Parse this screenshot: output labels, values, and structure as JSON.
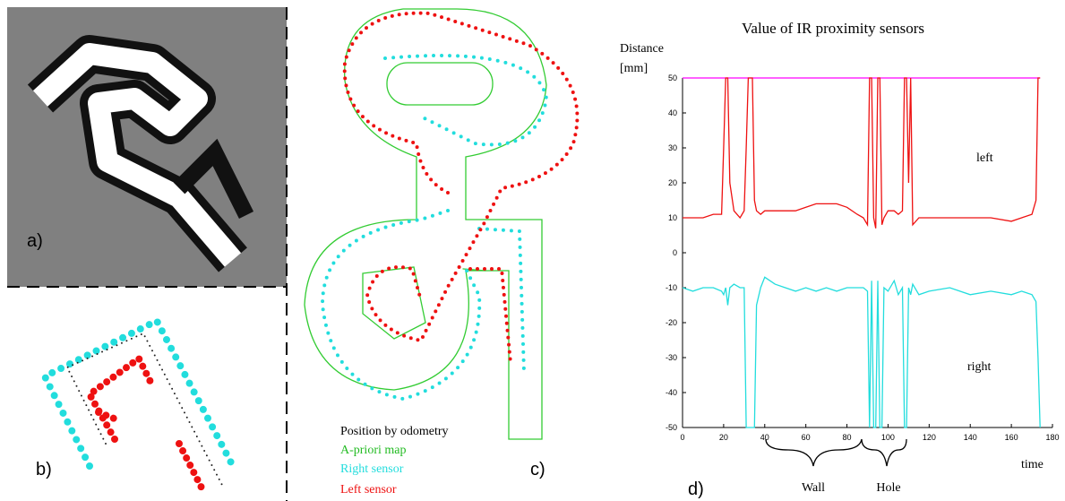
{
  "panels": {
    "a": {
      "label": "a)"
    },
    "b": {
      "label": "b)"
    },
    "c": {
      "label": "c)",
      "legend": [
        "Position by odometry",
        "A-priori map",
        "Right sensor",
        "Left sensor"
      ]
    }
  },
  "chart_data": {
    "type": "line",
    "panel_label": "d)",
    "title": "Value of IR proximity sensors",
    "ylabel": [
      "Distance",
      "[mm]"
    ],
    "xlabel": "time",
    "annotations": [
      "Wall",
      "Hole"
    ],
    "x": [
      0,
      5,
      10,
      15,
      19,
      20,
      21,
      22,
      23,
      25,
      28,
      30,
      31,
      32,
      33,
      34,
      35,
      36,
      38,
      40,
      45,
      50,
      55,
      60,
      65,
      70,
      75,
      80,
      85,
      88,
      90,
      91,
      92,
      93,
      94,
      95,
      96,
      97,
      98,
      100,
      103,
      105,
      107,
      108,
      109,
      110,
      111,
      112,
      115,
      120,
      130,
      140,
      150,
      160,
      165,
      170,
      172,
      173,
      174
    ],
    "series": [
      {
        "color": "#ff00ff",
        "values": [
          50,
          50,
          50,
          50,
          50,
          50,
          50,
          50,
          50,
          50,
          50,
          50,
          50,
          50,
          50,
          50,
          50,
          50,
          50,
          50,
          50,
          50,
          50,
          50,
          50,
          50,
          50,
          50,
          50,
          50,
          50,
          50,
          50,
          50,
          50,
          50,
          50,
          50,
          50,
          50,
          50,
          50,
          50,
          50,
          50,
          50,
          50,
          50,
          50,
          50,
          50,
          50,
          50,
          50,
          50,
          50,
          50,
          50,
          50
        ]
      },
      {
        "name": "left",
        "color": "#ee1111",
        "values": [
          10,
          10,
          10,
          11,
          11,
          30,
          50,
          50,
          20,
          12,
          10,
          12,
          30,
          50,
          50,
          50,
          15,
          12,
          11,
          12,
          12,
          12,
          12,
          13,
          14,
          14,
          14,
          13,
          11,
          10,
          8,
          50,
          50,
          10,
          7,
          50,
          50,
          8,
          10,
          12,
          12,
          11,
          12,
          50,
          50,
          20,
          50,
          8,
          10,
          10,
          10,
          10,
          10,
          9,
          10,
          11,
          15,
          50,
          50
        ]
      },
      {
        "name": "right",
        "color": "#22dddd",
        "values": [
          -10,
          -11,
          -10,
          -10,
          -11,
          -12,
          -10,
          -15,
          -10,
          -9,
          -10,
          -10,
          -50,
          -50,
          -50,
          -50,
          -50,
          -15,
          -10,
          -7,
          -9,
          -10,
          -11,
          -10,
          -11,
          -10,
          -11,
          -10,
          -10,
          -10,
          -11,
          -50,
          -8,
          -50,
          -50,
          -8,
          -50,
          -50,
          -10,
          -11,
          -8,
          -12,
          -10,
          -50,
          -50,
          -10,
          -12,
          -9,
          -12,
          -11,
          -10,
          -12,
          -11,
          -12,
          -11,
          -12,
          -14,
          -30,
          -50
        ]
      }
    ],
    "xlim": [
      0,
      180
    ],
    "xticks": [
      0,
      20,
      40,
      60,
      80,
      100,
      120,
      140,
      160,
      180
    ],
    "ylim": [
      -50,
      50
    ],
    "yticks": [
      -50,
      -40,
      -30,
      -20,
      -10,
      0,
      10,
      20,
      30,
      40,
      50
    ]
  }
}
